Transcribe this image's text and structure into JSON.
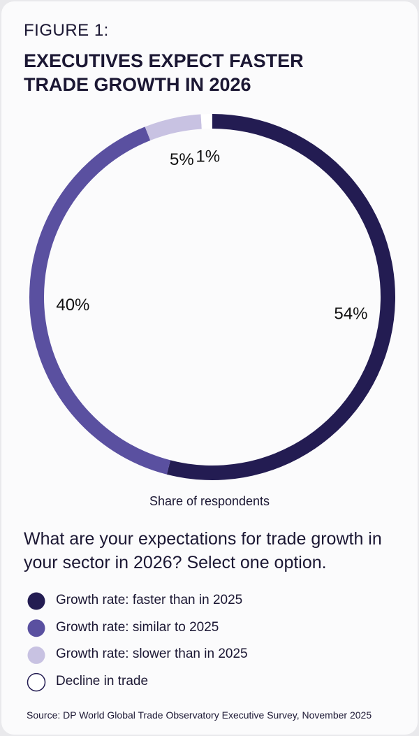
{
  "chart_data": {
    "type": "donut",
    "figure_label": "FIGURE 1:",
    "title": "EXECUTIVES EXPECT FASTER TRADE GROWTH IN 2026",
    "caption": "Share of respondents",
    "question": "What are your expectations for trade growth in your sector in 2026? Select one option.",
    "categories": [
      "Growth rate: faster than in 2025",
      "Growth rate: similar to 2025",
      "Growth rate: slower than in 2025",
      "Decline in trade"
    ],
    "values": [
      54,
      40,
      5,
      1
    ],
    "value_labels": [
      "54%",
      "40%",
      "5%",
      "1%"
    ],
    "colors": [
      "#231c52",
      "#5a50a0",
      "#c8c2e2",
      "#ffffff"
    ],
    "source": "Source: DP World Global Trade Observatory Executive Survey, November 2025"
  }
}
